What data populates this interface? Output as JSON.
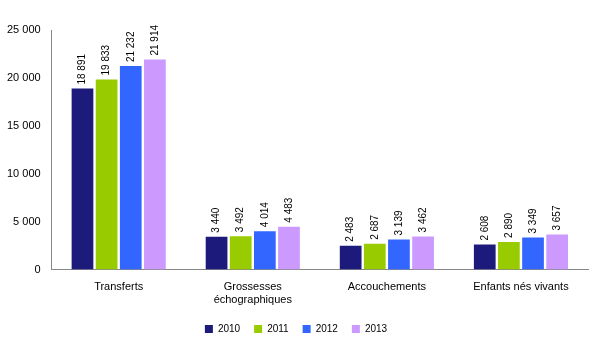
{
  "chart_data": {
    "type": "bar",
    "categories": [
      "Transferts",
      "Grossesses échographiques",
      "Accouchements",
      "Enfants nés vivants"
    ],
    "series": [
      {
        "name": "2010",
        "color": "#1c1a7a",
        "values": [
          18891,
          3440,
          2483,
          2608
        ],
        "value_labels": [
          "18 891",
          "3 440",
          "2 483",
          "2 608"
        ]
      },
      {
        "name": "2011",
        "color": "#99cc00",
        "values": [
          19833,
          3492,
          2687,
          2890
        ],
        "value_labels": [
          "19 833",
          "3 492",
          "2 687",
          "2 890"
        ]
      },
      {
        "name": "2012",
        "color": "#3366ff",
        "values": [
          21232,
          4014,
          3139,
          3349
        ],
        "value_labels": [
          "21 232",
          "4 014",
          "3 139",
          "3 349"
        ]
      },
      {
        "name": "2013",
        "color": "#cc99ff",
        "values": [
          21914,
          4483,
          3462,
          3657
        ],
        "value_labels": [
          "21 914",
          "4 483",
          "3 462",
          "3 657"
        ]
      }
    ],
    "ylim": [
      0,
      25000
    ],
    "yticks": [
      0,
      {
        "value": 5000,
        "label": "5 000"
      },
      {
        "value": 10000,
        "label": "10 000"
      },
      {
        "value": 15000,
        "label": "15 000"
      },
      {
        "value": 20000,
        "label": "20 000"
      },
      {
        "value": 25000,
        "label": "25 000"
      }
    ],
    "grid": false,
    "legend": "bottom",
    "data_labels": true
  }
}
